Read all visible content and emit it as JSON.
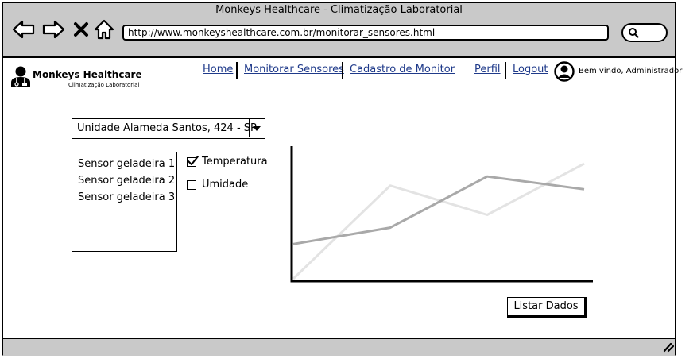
{
  "window": {
    "title": "Monkeys Healthcare - Climatização Laboratorial"
  },
  "browser": {
    "url": "http://www.monkeyshealthcare.com.br/monitorar_sensores.html",
    "icons": [
      "back-arrow-icon",
      "forward-arrow-icon",
      "close-x-icon",
      "home-icon",
      "search-icon",
      "resize-grip-icon"
    ]
  },
  "header": {
    "brand": "Monkeys Healthcare",
    "tagline": "Climatização Laboratorial",
    "nav": {
      "home": "Home",
      "monitor": "Monitorar Sensores",
      "cadastro": "Cadastro de Monitor",
      "perfil": "Perfil",
      "logout": "Logout"
    },
    "welcome": "Bem vindo, Administrador"
  },
  "filters": {
    "unit_selected": "Unidade Alameda Santos, 424 - SP",
    "sensors": [
      "Sensor geladeira 1",
      "Sensor geladeira 2",
      "Sensor geladeira 3"
    ],
    "measures": [
      {
        "label": "Temperatura",
        "checked": true
      },
      {
        "label": "Umidade",
        "checked": false
      }
    ]
  },
  "actions": {
    "list_button": "Listar Dados"
  },
  "chart_data": {
    "type": "line",
    "series": [
      {
        "values": [
          [
            0,
            0
          ],
          [
            1,
            5.1
          ],
          [
            2,
            3.5
          ],
          [
            3,
            6.3
          ]
        ],
        "color": "#e3e3e3"
      },
      {
        "values": [
          [
            0,
            1.9
          ],
          [
            1,
            2.8
          ],
          [
            2,
            5.6
          ],
          [
            3,
            4.9
          ]
        ],
        "color": "#a9a9a9"
      }
    ],
    "xlim": [
      0,
      3
    ],
    "ylim": [
      0,
      7
    ],
    "grid": false
  }
}
